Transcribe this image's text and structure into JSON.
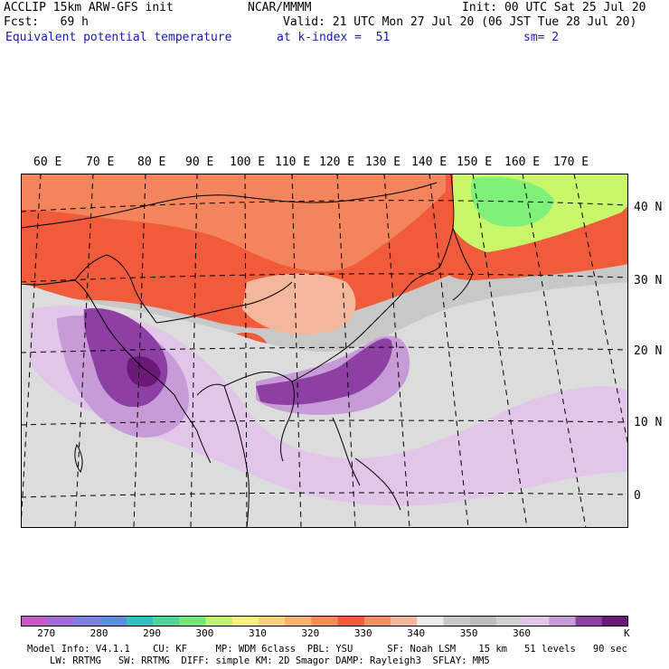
{
  "header": {
    "line1_left": "ACCLIP 15km ARW-GFS init",
    "line1_mid": "NCAR/MMMM",
    "line1_right": "Init: 00 UTC Sat 25 Jul 20",
    "line2_left": "Fcst:   69 h",
    "line2_right": "Valid: 21 UTC Mon 27 Jul 20 (06 JST Tue 28 Jul 20)",
    "line3_left": "Equivalent potential temperature",
    "line3_mid": "at k-index =  51",
    "line3_right": "sm= 2"
  },
  "map": {
    "lon_labels": [
      "60 E",
      "70 E",
      "80 E",
      "90 E",
      "100 E",
      "110 E",
      "120 E",
      "130 E",
      "140 E",
      "150 E",
      "160 E",
      "170 E"
    ],
    "lat_labels": [
      "40 N",
      "30 N",
      "20 N",
      "10 N",
      "0"
    ],
    "field": "Equivalent potential temperature",
    "colors": {
      "very_warm": "#f15a3a",
      "warm": "#f58c63",
      "mild": "#f3b79b",
      "cool_gray": "#c8c8c8",
      "light_gray": "#dcdcdc",
      "lavender": "#e2c6ea",
      "light_purple": "#c79bd7",
      "purple": "#8e3fa3",
      "deep_purple": "#6b1878",
      "green": "#7ff07a",
      "yellow_green": "#c8f86a",
      "coast": "#000000"
    }
  },
  "colorbar": {
    "swatches": [
      "#c55ac8",
      "#a46ad6",
      "#7f7fe0",
      "#5b8de0",
      "#31c0c0",
      "#4bd69a",
      "#72e87a",
      "#bff56a",
      "#f7f27a",
      "#f9d27a",
      "#f7b070",
      "#f78a58",
      "#f15a3a",
      "#f58c63",
      "#f3b79b",
      "#ececec",
      "#c8c8c8",
      "#bdbdbd",
      "#d0d0d0",
      "#e2c6ea",
      "#c79bd7",
      "#8e3fa3",
      "#6b1878"
    ],
    "ticks": [
      "270",
      "280",
      "290",
      "300",
      "310",
      "320",
      "330",
      "340",
      "350",
      "360"
    ],
    "unit": "K"
  },
  "footer": {
    "line1": "Model Info: V4.1.1    CU: KF     MP: WDM 6class  PBL: YSU      SF: Noah LSM    15 km   51 levels   90 sec",
    "line2": "LW: RRTMG   SW: RRTMG  DIFF: simple KM: 2D Smagor DAMP: Rayleigh3  SFLAY: MM5"
  }
}
